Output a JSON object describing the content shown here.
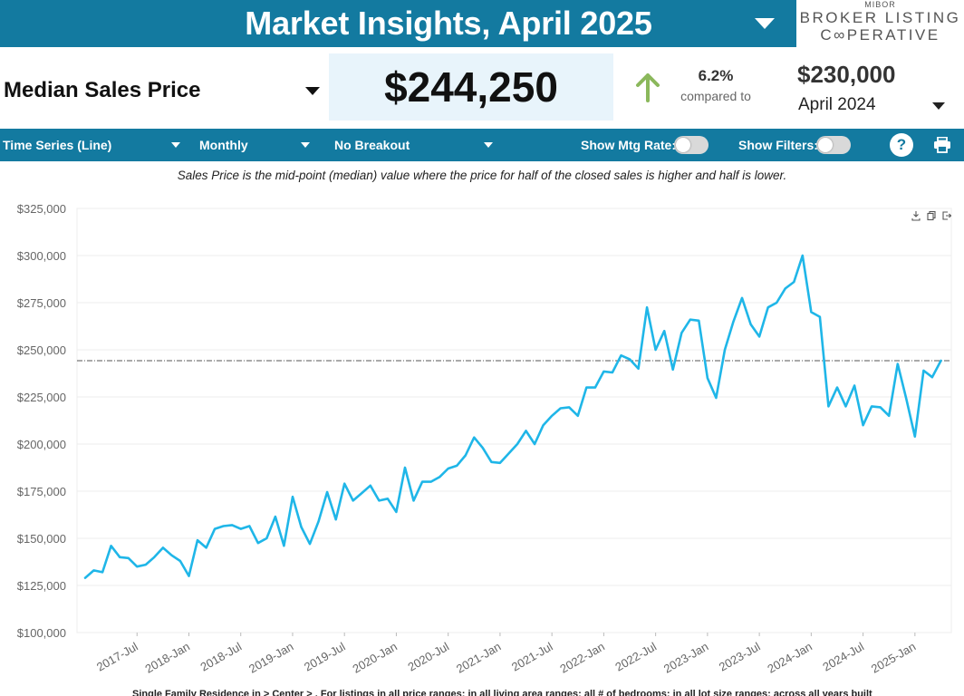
{
  "header": {
    "title": "Market Insights, April 2025",
    "logo": {
      "top": "MIBOR",
      "line1": "BROKER LISTING",
      "line2": "C∞PERATIVE"
    }
  },
  "metric": {
    "label": "Median Sales Price",
    "value": "$244,250",
    "change_pct": "6.2%",
    "compared_to": "compared to",
    "prev_value": "$230,000",
    "prev_period": "April 2024",
    "up_color": "#8bb85c"
  },
  "toolbar": {
    "chart_type": "Time Series (Line)",
    "interval": "Monthly",
    "breakout": "No Breakout",
    "mtg_rate_label": "Show Mtg Rate:",
    "filters_label": "Show Filters:",
    "help_label": "?"
  },
  "subtitle": "Sales Price is the mid-point (median) value where the price for half of the closed sales is higher and half is lower.",
  "footnote": "Single Family Residence in > Center > . For listings in all price ranges; in all living area ranges; all # of bedrooms; in all lot size ranges; across all years built",
  "icons": [
    "download-icon",
    "copy-icon",
    "export-icon",
    "print-icon"
  ],
  "chart_data": {
    "type": "line",
    "y_ticks": [
      "$100,000",
      "$125,000",
      "$150,000",
      "$175,000",
      "$200,000",
      "$225,000",
      "$250,000",
      "$275,000",
      "$300,000",
      "$325,000"
    ],
    "x_ticks": [
      "2017-Jul",
      "2018-Jan",
      "2018-Jul",
      "2019-Jan",
      "2019-Jul",
      "2020-Jan",
      "2020-Jul",
      "2021-Jan",
      "2021-Jul",
      "2022-Jan",
      "2022-Jul",
      "2023-Jan",
      "2023-Jul",
      "2024-Jan",
      "2024-Jul",
      "2025-Jan"
    ],
    "ylim": [
      100000,
      325000
    ],
    "x_start": "2017-Jan",
    "x_end": "2025-Apr",
    "reference_line": 244250,
    "line_color": "#1fb6e8",
    "grid": true,
    "series": [
      {
        "values": [
          129000,
          133000,
          132000,
          146000,
          140000,
          139500,
          135000,
          136000,
          140000,
          145000,
          141000,
          138000,
          130000,
          149000,
          145000,
          155000,
          156500,
          157000,
          155000,
          156500,
          147500,
          150000,
          161500,
          146000,
          172000,
          156000,
          147000,
          159000,
          174500,
          160000,
          179000,
          170000,
          174000,
          178000,
          170000,
          171000,
          164000,
          187500,
          170000,
          180000,
          180000,
          182500,
          187000,
          188500,
          194000,
          203500,
          198000,
          190500,
          190000,
          195000,
          200000,
          207000,
          200000,
          210000,
          215000,
          219000,
          219500,
          215000,
          230000,
          230000,
          238500,
          238000,
          247000,
          245000,
          240000,
          272500,
          250000,
          260000,
          239500,
          259000,
          266000,
          265500,
          235000,
          224500,
          250000,
          265000,
          277500,
          263500,
          257000,
          272500,
          275000,
          282500,
          286000,
          300000,
          270000,
          267500,
          220000,
          230000,
          220000,
          231000,
          210000,
          220000,
          219500,
          215000,
          242500,
          224000,
          204000,
          239000,
          235500,
          244250
        ]
      }
    ]
  }
}
